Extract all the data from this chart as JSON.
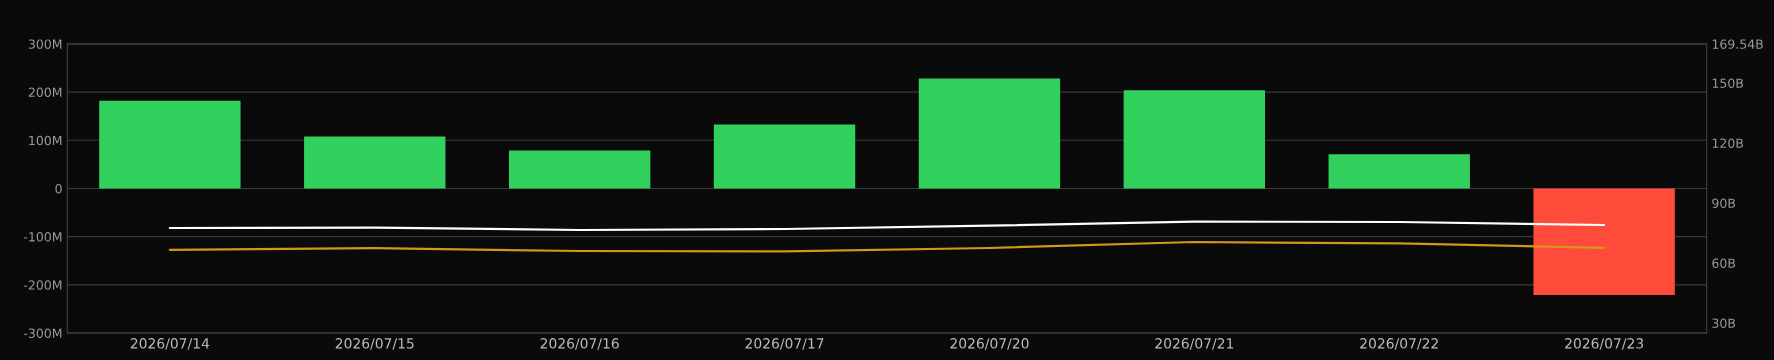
{
  "chart_data": {
    "type": "bar",
    "categories": [
      "2026/07/14",
      "2026/07/15",
      "2026/07/16",
      "2026/07/17",
      "2026/07/20",
      "2026/07/21",
      "2026/07/22",
      "2026/07/23"
    ],
    "series": [
      {
        "colors": [
          "#32d15d",
          "#32d15d",
          "#32d15d",
          "#32d15d",
          "#32d15d",
          "#32d15d",
          "#32d15d",
          "#ff4b3a"
        ],
        "values": [
          182,
          108,
          79,
          133,
          228,
          204,
          71,
          -221
        ]
      },
      {
        "type": "line",
        "axis": "y2",
        "color": "#ffffff",
        "values": [
          77.5,
          77.7,
          76.5,
          77,
          78.7,
          80.7,
          80.5,
          79
        ]
      },
      {
        "type": "line",
        "axis": "y2",
        "color": "#d4961e",
        "values": [
          66.6,
          67.4,
          66,
          65.8,
          67.5,
          70.5,
          69.8,
          67.6
        ]
      }
    ],
    "ylim": [
      -300,
      300
    ],
    "yticks": [
      {
        "value": -300,
        "label": "-300M"
      },
      {
        "value": -200,
        "label": "-200M"
      },
      {
        "value": -100,
        "label": "-100M"
      },
      0,
      {
        "value": 100,
        "label": "100M"
      },
      {
        "value": 200,
        "label": "200M"
      },
      {
        "value": 300,
        "label": "300M"
      }
    ],
    "y2lim": [
      25,
      169.54
    ],
    "y2ticks": [
      {
        "value": 30,
        "label": "30B"
      },
      {
        "value": 60,
        "label": "60B"
      },
      {
        "value": 90,
        "label": "90B"
      },
      {
        "value": 120,
        "label": "120B"
      },
      {
        "value": 150,
        "label": "150B"
      },
      {
        "value": 169.54,
        "label": "169.54B"
      }
    ],
    "grid": "y",
    "legend": false
  }
}
